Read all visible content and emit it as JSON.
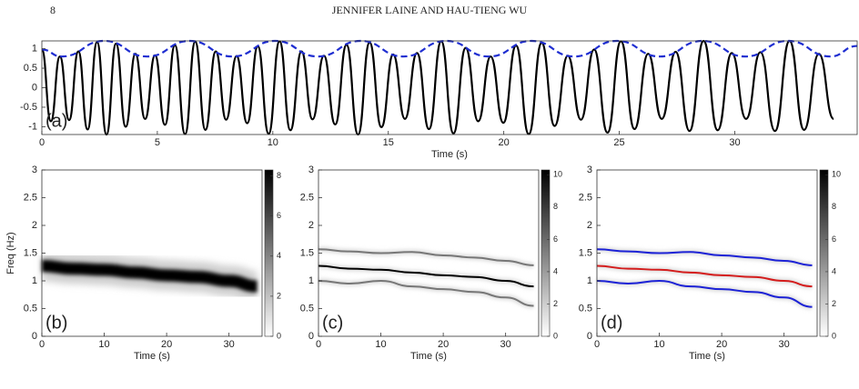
{
  "header": {
    "page": "8",
    "running_title": "JENNIFER LAINE AND HAU-TIENG WU"
  },
  "chart_data": [
    {
      "type": "line",
      "label": "(a)",
      "xlabel": "Time (s)",
      "xlim": [
        0,
        35.3
      ],
      "ylim": [
        -1.2,
        1.2
      ],
      "xticks": [
        0,
        5,
        10,
        15,
        20,
        25,
        30
      ],
      "yticks": [
        -1,
        -0.5,
        0,
        0.5,
        1
      ],
      "series": [
        {
          "color": "#000000",
          "dash": false,
          "x": [
            0,
            0.39,
            0.78,
            1.18,
            1.58,
            1.98,
            2.39,
            2.8,
            3.21,
            3.63,
            4.05,
            4.47,
            4.9,
            5.33,
            5.76,
            6.2,
            6.64,
            7.08,
            7.53,
            7.98,
            8.43,
            8.89,
            9.35,
            9.82,
            10.29,
            10.76,
            11.24,
            11.72,
            12.21,
            12.7,
            13.19,
            13.69,
            14.19,
            14.7,
            15.21,
            15.72,
            16.24,
            16.76,
            17.29,
            17.82,
            18.35,
            18.89,
            19.43,
            19.98,
            20.53,
            21.08,
            21.64,
            22.2,
            22.77,
            23.34,
            23.91,
            24.49,
            25.07,
            25.66,
            26.25,
            26.84,
            27.44,
            28.04,
            28.65,
            29.26,
            29.87,
            30.49,
            31.11,
            31.74,
            32.37,
            33.0,
            33.64,
            34.28
          ],
          "values": [
            0.98,
            -0.86,
            0.8,
            -0.83,
            0.93,
            -1.07,
            1.17,
            -1.2,
            1.13,
            -1.0,
            0.87,
            -0.8,
            0.83,
            -0.95,
            1.09,
            -1.19,
            1.18,
            -1.08,
            0.93,
            -0.82,
            0.81,
            -0.91,
            1.06,
            -1.18,
            1.19,
            -1.09,
            0.93,
            -0.81,
            0.82,
            -0.94,
            1.1,
            -1.2,
            1.16,
            -1.01,
            0.85,
            -0.8,
            0.89,
            -1.06,
            1.19,
            -1.17,
            1.02,
            -0.86,
            0.8,
            -0.9,
            1.08,
            -1.19,
            1.15,
            -0.98,
            0.82,
            -0.82,
            0.98,
            -1.15,
            1.19,
            -1.06,
            0.87,
            -0.8,
            0.92,
            -1.11,
            1.2,
            -1.09,
            0.89,
            -0.8,
            0.91,
            -1.11,
            1.2,
            -1.08,
            0.87,
            -0.8
          ]
        },
        {
          "color": "#1f2ed1",
          "dash": true,
          "x": [
            0,
            0.85,
            2.7,
            4.55,
            6.4,
            8.25,
            10.1,
            11.95,
            13.8,
            15.65,
            17.5,
            19.35,
            21.2,
            23.05,
            24.9,
            26.75,
            28.6,
            30.45,
            32.3,
            34.15,
            35.3
          ],
          "values": [
            0.98,
            0.8,
            1.2,
            0.8,
            1.2,
            0.8,
            1.2,
            0.8,
            1.2,
            0.8,
            1.2,
            0.8,
            1.2,
            0.8,
            1.2,
            0.8,
            1.2,
            0.8,
            1.2,
            0.8,
            1.07
          ]
        }
      ]
    },
    {
      "type": "heatmap",
      "label": "(b)",
      "xlabel": "Time (s)",
      "ylabel": "Freq (Hz)",
      "blur": true,
      "xlim": [
        0,
        35.3
      ],
      "ylim": [
        0,
        3
      ],
      "xticks": [
        0,
        10,
        20,
        30
      ],
      "yticks": [
        0,
        0.5,
        1,
        1.5,
        2,
        2.5,
        3
      ],
      "colorbar": {
        "lim": [
          0,
          8.3
        ],
        "ticks": [
          0,
          2,
          4,
          6,
          8
        ]
      },
      "x": [
        0,
        5,
        10,
        15,
        20,
        25,
        30,
        34.5
      ],
      "series": [
        {
          "color": "#000000",
          "values": [
            1.27,
            1.22,
            1.2,
            1.15,
            1.1,
            1.07,
            1.0,
            0.9
          ]
        }
      ]
    },
    {
      "type": "heatmap",
      "label": "(c)",
      "xlabel": "Time (s)",
      "blur": false,
      "xlim": [
        0,
        35.3
      ],
      "ylim": [
        0,
        3
      ],
      "xticks": [
        0,
        10,
        20,
        30
      ],
      "yticks": [
        0,
        0.5,
        1,
        1.5,
        2,
        2.5,
        3
      ],
      "colorbar": {
        "lim": [
          0,
          10.3
        ],
        "ticks": [
          0,
          2,
          4,
          6,
          8,
          10
        ]
      },
      "x": [
        0,
        5,
        10,
        15,
        20,
        25,
        30,
        34.5
      ],
      "series": [
        {
          "color": "#777777",
          "values": [
            1.57,
            1.53,
            1.5,
            1.52,
            1.46,
            1.42,
            1.36,
            1.28
          ]
        },
        {
          "color": "#777777",
          "values": [
            1.0,
            0.95,
            1.0,
            0.9,
            0.85,
            0.8,
            0.7,
            0.55
          ]
        },
        {
          "color": "#000000",
          "values": [
            1.27,
            1.22,
            1.2,
            1.15,
            1.1,
            1.07,
            1.0,
            0.9
          ]
        }
      ]
    },
    {
      "type": "heatmap",
      "label": "(d)",
      "xlabel": "Time (s)",
      "blur": false,
      "xlim": [
        0,
        35.3
      ],
      "ylim": [
        0,
        3
      ],
      "xticks": [
        0,
        10,
        20,
        30
      ],
      "yticks": [
        0,
        0.5,
        1,
        1.5,
        2,
        2.5,
        3
      ],
      "colorbar": {
        "lim": [
          0,
          10.3
        ],
        "ticks": [
          0,
          2,
          4,
          6,
          8,
          10
        ]
      },
      "x": [
        0,
        5,
        10,
        15,
        20,
        25,
        30,
        34.5
      ],
      "series": [
        {
          "color": "#1c22d6",
          "values": [
            1.57,
            1.53,
            1.5,
            1.52,
            1.46,
            1.42,
            1.36,
            1.28
          ]
        },
        {
          "color": "#1c22d6",
          "values": [
            1.0,
            0.95,
            1.0,
            0.9,
            0.85,
            0.8,
            0.7,
            0.53
          ]
        },
        {
          "color": "#d41c1c",
          "values": [
            1.27,
            1.22,
            1.2,
            1.15,
            1.1,
            1.07,
            1.0,
            0.9
          ]
        }
      ]
    }
  ]
}
